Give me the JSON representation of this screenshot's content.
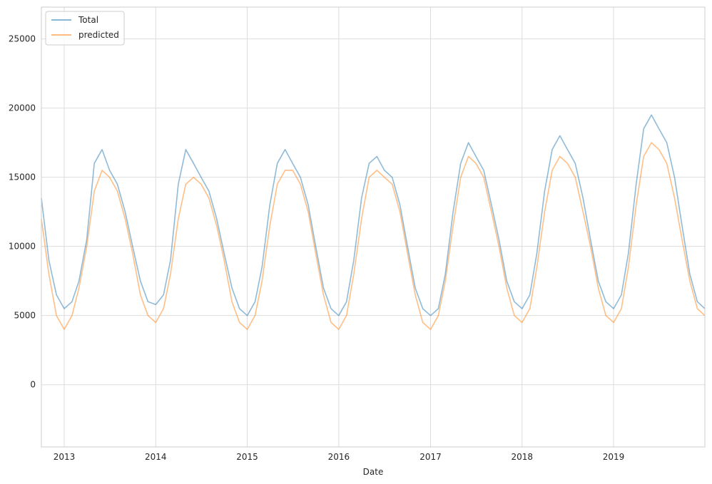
{
  "chart_data": {
    "type": "line",
    "title": "",
    "xlabel": "Date",
    "ylabel": "",
    "x_range": [
      "2012-10-02",
      "2019-12-31"
    ],
    "ylim": [
      -4500,
      27300
    ],
    "x_ticks": [
      {
        "date": "2013-01-01",
        "label": "2013"
      },
      {
        "date": "2014-01-01",
        "label": "2014"
      },
      {
        "date": "2015-01-01",
        "label": "2015"
      },
      {
        "date": "2016-01-01",
        "label": "2016"
      },
      {
        "date": "2017-01-01",
        "label": "2017"
      },
      {
        "date": "2018-01-01",
        "label": "2018"
      },
      {
        "date": "2019-01-01",
        "label": "2019"
      }
    ],
    "y_ticks": [
      {
        "value": 0,
        "label": "0"
      },
      {
        "value": 5000,
        "label": "5000"
      },
      {
        "value": 10000,
        "label": "10000"
      },
      {
        "value": 15000,
        "label": "15000"
      },
      {
        "value": 20000,
        "label": "20000"
      },
      {
        "value": 25000,
        "label": "25000"
      }
    ],
    "grid": true,
    "legend_position": "top-left",
    "series": [
      {
        "name": "Total",
        "color": "#1f77b4",
        "opacity": 0.5,
        "points": [
          [
            "2012-10-02",
            13500
          ],
          [
            "2012-11-01",
            9000
          ],
          [
            "2012-12-01",
            6500
          ],
          [
            "2013-01-01",
            5500
          ],
          [
            "2013-02-01",
            6000
          ],
          [
            "2013-03-01",
            7500
          ],
          [
            "2013-04-01",
            10500
          ],
          [
            "2013-05-01",
            16000
          ],
          [
            "2013-06-01",
            17000
          ],
          [
            "2013-07-01",
            15500
          ],
          [
            "2013-08-01",
            14500
          ],
          [
            "2013-09-01",
            12500
          ],
          [
            "2013-10-01",
            10000
          ],
          [
            "2013-11-01",
            7500
          ],
          [
            "2013-12-01",
            6000
          ],
          [
            "2014-01-01",
            5800
          ],
          [
            "2014-02-01",
            6500
          ],
          [
            "2014-03-01",
            9000
          ],
          [
            "2014-04-01",
            14500
          ],
          [
            "2014-05-01",
            17000
          ],
          [
            "2014-06-01",
            16000
          ],
          [
            "2014-07-01",
            15000
          ],
          [
            "2014-08-01",
            14000
          ],
          [
            "2014-09-01",
            12000
          ],
          [
            "2014-10-01",
            9500
          ],
          [
            "2014-11-01",
            7000
          ],
          [
            "2014-12-01",
            5500
          ],
          [
            "2015-01-01",
            5000
          ],
          [
            "2015-02-01",
            6000
          ],
          [
            "2015-03-01",
            8500
          ],
          [
            "2015-04-01",
            13000
          ],
          [
            "2015-05-01",
            16000
          ],
          [
            "2015-06-01",
            17000
          ],
          [
            "2015-07-01",
            16000
          ],
          [
            "2015-08-01",
            15000
          ],
          [
            "2015-09-01",
            13000
          ],
          [
            "2015-10-01",
            10000
          ],
          [
            "2015-11-01",
            7000
          ],
          [
            "2015-12-01",
            5500
          ],
          [
            "2016-01-01",
            5000
          ],
          [
            "2016-02-01",
            6000
          ],
          [
            "2016-03-01",
            9000
          ],
          [
            "2016-04-01",
            13500
          ],
          [
            "2016-05-01",
            16000
          ],
          [
            "2016-06-01",
            16500
          ],
          [
            "2016-07-01",
            15500
          ],
          [
            "2016-08-01",
            15000
          ],
          [
            "2016-09-01",
            13000
          ],
          [
            "2016-10-01",
            10000
          ],
          [
            "2016-11-01",
            7000
          ],
          [
            "2016-12-01",
            5500
          ],
          [
            "2017-01-01",
            5000
          ],
          [
            "2017-02-01",
            5500
          ],
          [
            "2017-03-01",
            8000
          ],
          [
            "2017-04-01",
            12500
          ],
          [
            "2017-05-01",
            16000
          ],
          [
            "2017-06-01",
            17500
          ],
          [
            "2017-07-01",
            16500
          ],
          [
            "2017-08-01",
            15500
          ],
          [
            "2017-09-01",
            13000
          ],
          [
            "2017-10-01",
            10500
          ],
          [
            "2017-11-01",
            7500
          ],
          [
            "2017-12-01",
            6000
          ],
          [
            "2018-01-01",
            5500
          ],
          [
            "2018-02-01",
            6500
          ],
          [
            "2018-03-01",
            9500
          ],
          [
            "2018-04-01",
            14000
          ],
          [
            "2018-05-01",
            17000
          ],
          [
            "2018-06-01",
            18000
          ],
          [
            "2018-07-01",
            17000
          ],
          [
            "2018-08-01",
            16000
          ],
          [
            "2018-09-01",
            13500
          ],
          [
            "2018-10-01",
            10500
          ],
          [
            "2018-11-01",
            7500
          ],
          [
            "2018-12-01",
            6000
          ],
          [
            "2019-01-01",
            5500
          ],
          [
            "2019-02-01",
            6500
          ],
          [
            "2019-03-01",
            9500
          ],
          [
            "2019-04-01",
            14500
          ],
          [
            "2019-05-01",
            18500
          ],
          [
            "2019-06-01",
            19500
          ],
          [
            "2019-07-01",
            18500
          ],
          [
            "2019-08-01",
            17500
          ],
          [
            "2019-09-01",
            15000
          ],
          [
            "2019-10-01",
            11500
          ],
          [
            "2019-11-01",
            8000
          ],
          [
            "2019-12-01",
            6000
          ],
          [
            "2019-12-31",
            5500
          ]
        ]
      },
      {
        "name": "predicted",
        "color": "#ff7f0e",
        "opacity": 0.5,
        "points": [
          [
            "2012-10-02",
            12000
          ],
          [
            "2012-11-01",
            8000
          ],
          [
            "2012-12-01",
            5000
          ],
          [
            "2013-01-01",
            4000
          ],
          [
            "2013-02-01",
            5000
          ],
          [
            "2013-03-01",
            7000
          ],
          [
            "2013-04-01",
            10000
          ],
          [
            "2013-05-01",
            14000
          ],
          [
            "2013-06-01",
            15500
          ],
          [
            "2013-07-01",
            15000
          ],
          [
            "2013-08-01",
            14000
          ],
          [
            "2013-09-01",
            12000
          ],
          [
            "2013-10-01",
            9500
          ],
          [
            "2013-11-01",
            6500
          ],
          [
            "2013-12-01",
            5000
          ],
          [
            "2014-01-01",
            4500
          ],
          [
            "2014-02-01",
            5500
          ],
          [
            "2014-03-01",
            8000
          ],
          [
            "2014-04-01",
            12000
          ],
          [
            "2014-05-01",
            14500
          ],
          [
            "2014-06-01",
            15000
          ],
          [
            "2014-07-01",
            14500
          ],
          [
            "2014-08-01",
            13500
          ],
          [
            "2014-09-01",
            11500
          ],
          [
            "2014-10-01",
            9000
          ],
          [
            "2014-11-01",
            6000
          ],
          [
            "2014-12-01",
            4500
          ],
          [
            "2015-01-01",
            4000
          ],
          [
            "2015-02-01",
            5000
          ],
          [
            "2015-03-01",
            7500
          ],
          [
            "2015-04-01",
            11500
          ],
          [
            "2015-05-01",
            14500
          ],
          [
            "2015-06-01",
            15500
          ],
          [
            "2015-07-01",
            15500
          ],
          [
            "2015-08-01",
            14500
          ],
          [
            "2015-09-01",
            12500
          ],
          [
            "2015-10-01",
            9500
          ],
          [
            "2015-11-01",
            6500
          ],
          [
            "2015-12-01",
            4500
          ],
          [
            "2016-01-01",
            4000
          ],
          [
            "2016-02-01",
            5000
          ],
          [
            "2016-03-01",
            8000
          ],
          [
            "2016-04-01",
            12000
          ],
          [
            "2016-05-01",
            15000
          ],
          [
            "2016-06-01",
            15500
          ],
          [
            "2016-07-01",
            15000
          ],
          [
            "2016-08-01",
            14500
          ],
          [
            "2016-09-01",
            12500
          ],
          [
            "2016-10-01",
            9500
          ],
          [
            "2016-11-01",
            6500
          ],
          [
            "2016-12-01",
            4500
          ],
          [
            "2017-01-01",
            4000
          ],
          [
            "2017-02-01",
            5000
          ],
          [
            "2017-03-01",
            7500
          ],
          [
            "2017-04-01",
            11500
          ],
          [
            "2017-05-01",
            15000
          ],
          [
            "2017-06-01",
            16500
          ],
          [
            "2017-07-01",
            16000
          ],
          [
            "2017-08-01",
            15000
          ],
          [
            "2017-09-01",
            12500
          ],
          [
            "2017-10-01",
            10000
          ],
          [
            "2017-11-01",
            7000
          ],
          [
            "2017-12-01",
            5000
          ],
          [
            "2018-01-01",
            4500
          ],
          [
            "2018-02-01",
            5500
          ],
          [
            "2018-03-01",
            8500
          ],
          [
            "2018-04-01",
            12500
          ],
          [
            "2018-05-01",
            15500
          ],
          [
            "2018-06-01",
            16500
          ],
          [
            "2018-07-01",
            16000
          ],
          [
            "2018-08-01",
            15000
          ],
          [
            "2018-09-01",
            12500
          ],
          [
            "2018-10-01",
            10000
          ],
          [
            "2018-11-01",
            7000
          ],
          [
            "2018-12-01",
            5000
          ],
          [
            "2019-01-01",
            4500
          ],
          [
            "2019-02-01",
            5500
          ],
          [
            "2019-03-01",
            8500
          ],
          [
            "2019-04-01",
            13000
          ],
          [
            "2019-05-01",
            16500
          ],
          [
            "2019-06-01",
            17500
          ],
          [
            "2019-07-01",
            17000
          ],
          [
            "2019-08-01",
            16000
          ],
          [
            "2019-09-01",
            13500
          ],
          [
            "2019-10-01",
            10500
          ],
          [
            "2019-11-01",
            7500
          ],
          [
            "2019-12-01",
            5500
          ],
          [
            "2019-12-31",
            5000
          ]
        ]
      }
    ]
  }
}
